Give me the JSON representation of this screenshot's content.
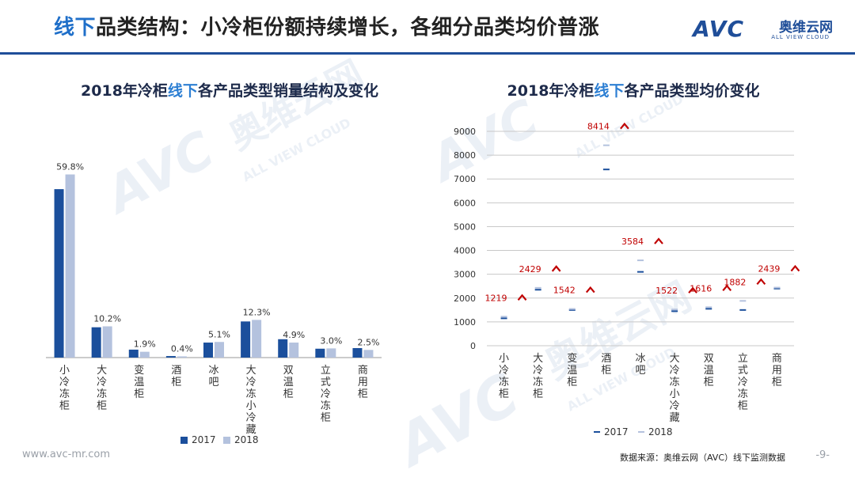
{
  "header": {
    "title_hl": "线下",
    "title_rest": "品类结构：小冷柜份额持续增长，各细分品类均价普涨",
    "logo_mark": "AVC",
    "logo_cn": "奥维云网",
    "logo_en": "ALL VIEW CLOUD",
    "watermark_mark": "AVC",
    "watermark_cn": "奥维云网",
    "watermark_en": "ALL VIEW CLOUD"
  },
  "colors": {
    "brand": "#1f4e99",
    "series2017": "#1b4f9c",
    "series2018": "#b4c2de",
    "arrow": "#c00000",
    "label_red": "#c00000"
  },
  "footer": {
    "url": "www.avc-mr.com",
    "source": "数据来源：奥维云网（AVC）线下监测数据",
    "page": "-9-"
  },
  "chart_data": [
    {
      "type": "bar",
      "title_prefix": "2018年冷柜",
      "title_hl": "线下",
      "title_suffix": "各产品类型销量结构及变化",
      "categories": [
        "小冷冻柜",
        "大冷冻柜",
        "变温柜",
        "酒柜",
        "冰吧",
        "大冷冻小冷藏",
        "双温柜",
        "立式冷冻柜",
        "商用柜"
      ],
      "series": [
        {
          "name": "2017",
          "values": [
            55.0,
            9.9,
            2.6,
            0.5,
            4.9,
            11.8,
            6.0,
            2.9,
            3.1
          ]
        },
        {
          "name": "2018",
          "values": [
            59.8,
            10.2,
            1.9,
            0.4,
            5.1,
            12.3,
            4.9,
            3.0,
            2.5
          ]
        }
      ],
      "data_labels": [
        "59.8%",
        "10.2%",
        "1.9%",
        "0.4%",
        "5.1%",
        "12.3%",
        "4.9%",
        "3.0%",
        "2.5%"
      ],
      "ylim": [
        0,
        62
      ],
      "legend": "bottom"
    },
    {
      "type": "scatter",
      "title_prefix": "2018年冷柜",
      "title_hl": "线下",
      "title_suffix": "各产品类型均价变化",
      "categories": [
        "小冷冻柜",
        "大冷冻柜",
        "变温柜",
        "酒柜",
        "冰吧",
        "大冷冻小冷藏",
        "双温柜",
        "立式冷冻柜",
        "商用柜"
      ],
      "series": [
        {
          "name": "2017",
          "values": [
            1150,
            2350,
            1500,
            7400,
            3100,
            1450,
            1550,
            1500,
            2400
          ]
        },
        {
          "name": "2018",
          "values": [
            1219,
            2429,
            1542,
            8414,
            3584,
            1522,
            1616,
            1882,
            2439
          ]
        }
      ],
      "data_labels": [
        "1219",
        "2429",
        "1542",
        "8414",
        "3584",
        "1522",
        "1616",
        "1882",
        "2439"
      ],
      "yticks": [
        "0",
        "1000",
        "2000",
        "3000",
        "4000",
        "5000",
        "6000",
        "7000",
        "8000",
        "9000"
      ],
      "ylim": [
        0,
        9000
      ],
      "legend": "bottom",
      "grid": true
    }
  ]
}
